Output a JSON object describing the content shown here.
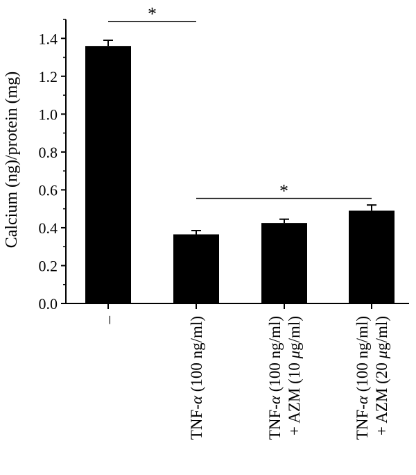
{
  "chart_data": {
    "type": "bar",
    "ylabel": "Calcium (ng)/protein (mg)",
    "ylim": [
      0,
      1.5
    ],
    "yticks": [
      "0.0",
      "0.2",
      "0.4",
      "0.6",
      "0.8",
      "1.0",
      "1.2",
      "1.4"
    ],
    "categories": [
      {
        "line1": "–",
        "line2": "",
        "em": ""
      },
      {
        "line1": "TNF-",
        "em": "α",
        "line1_rest": " (100 ng/ml)",
        "line2": ""
      },
      {
        "line1": "TNF-",
        "em": "α",
        "line1_rest": " (100 ng/ml)",
        "line2_pre": "+ AZM (10 ",
        "line2_em": "μ",
        "line2_post": "g/ml)"
      },
      {
        "line1": "TNF-",
        "em": "α",
        "line1_rest": " (100 ng/ml)",
        "line2_pre": "+ AZM (20 ",
        "line2_em": "μ",
        "line2_post": "g/ml)"
      }
    ],
    "values": [
      1.36,
      0.365,
      0.425,
      0.49
    ],
    "errors": [
      0.03,
      0.02,
      0.02,
      0.03
    ],
    "significance": [
      {
        "from": 0,
        "to": 1,
        "label": "*",
        "y": 1.49
      },
      {
        "from": 1,
        "to": 3,
        "label": "*",
        "y": 0.555
      }
    ],
    "bar_color": "#000000"
  }
}
